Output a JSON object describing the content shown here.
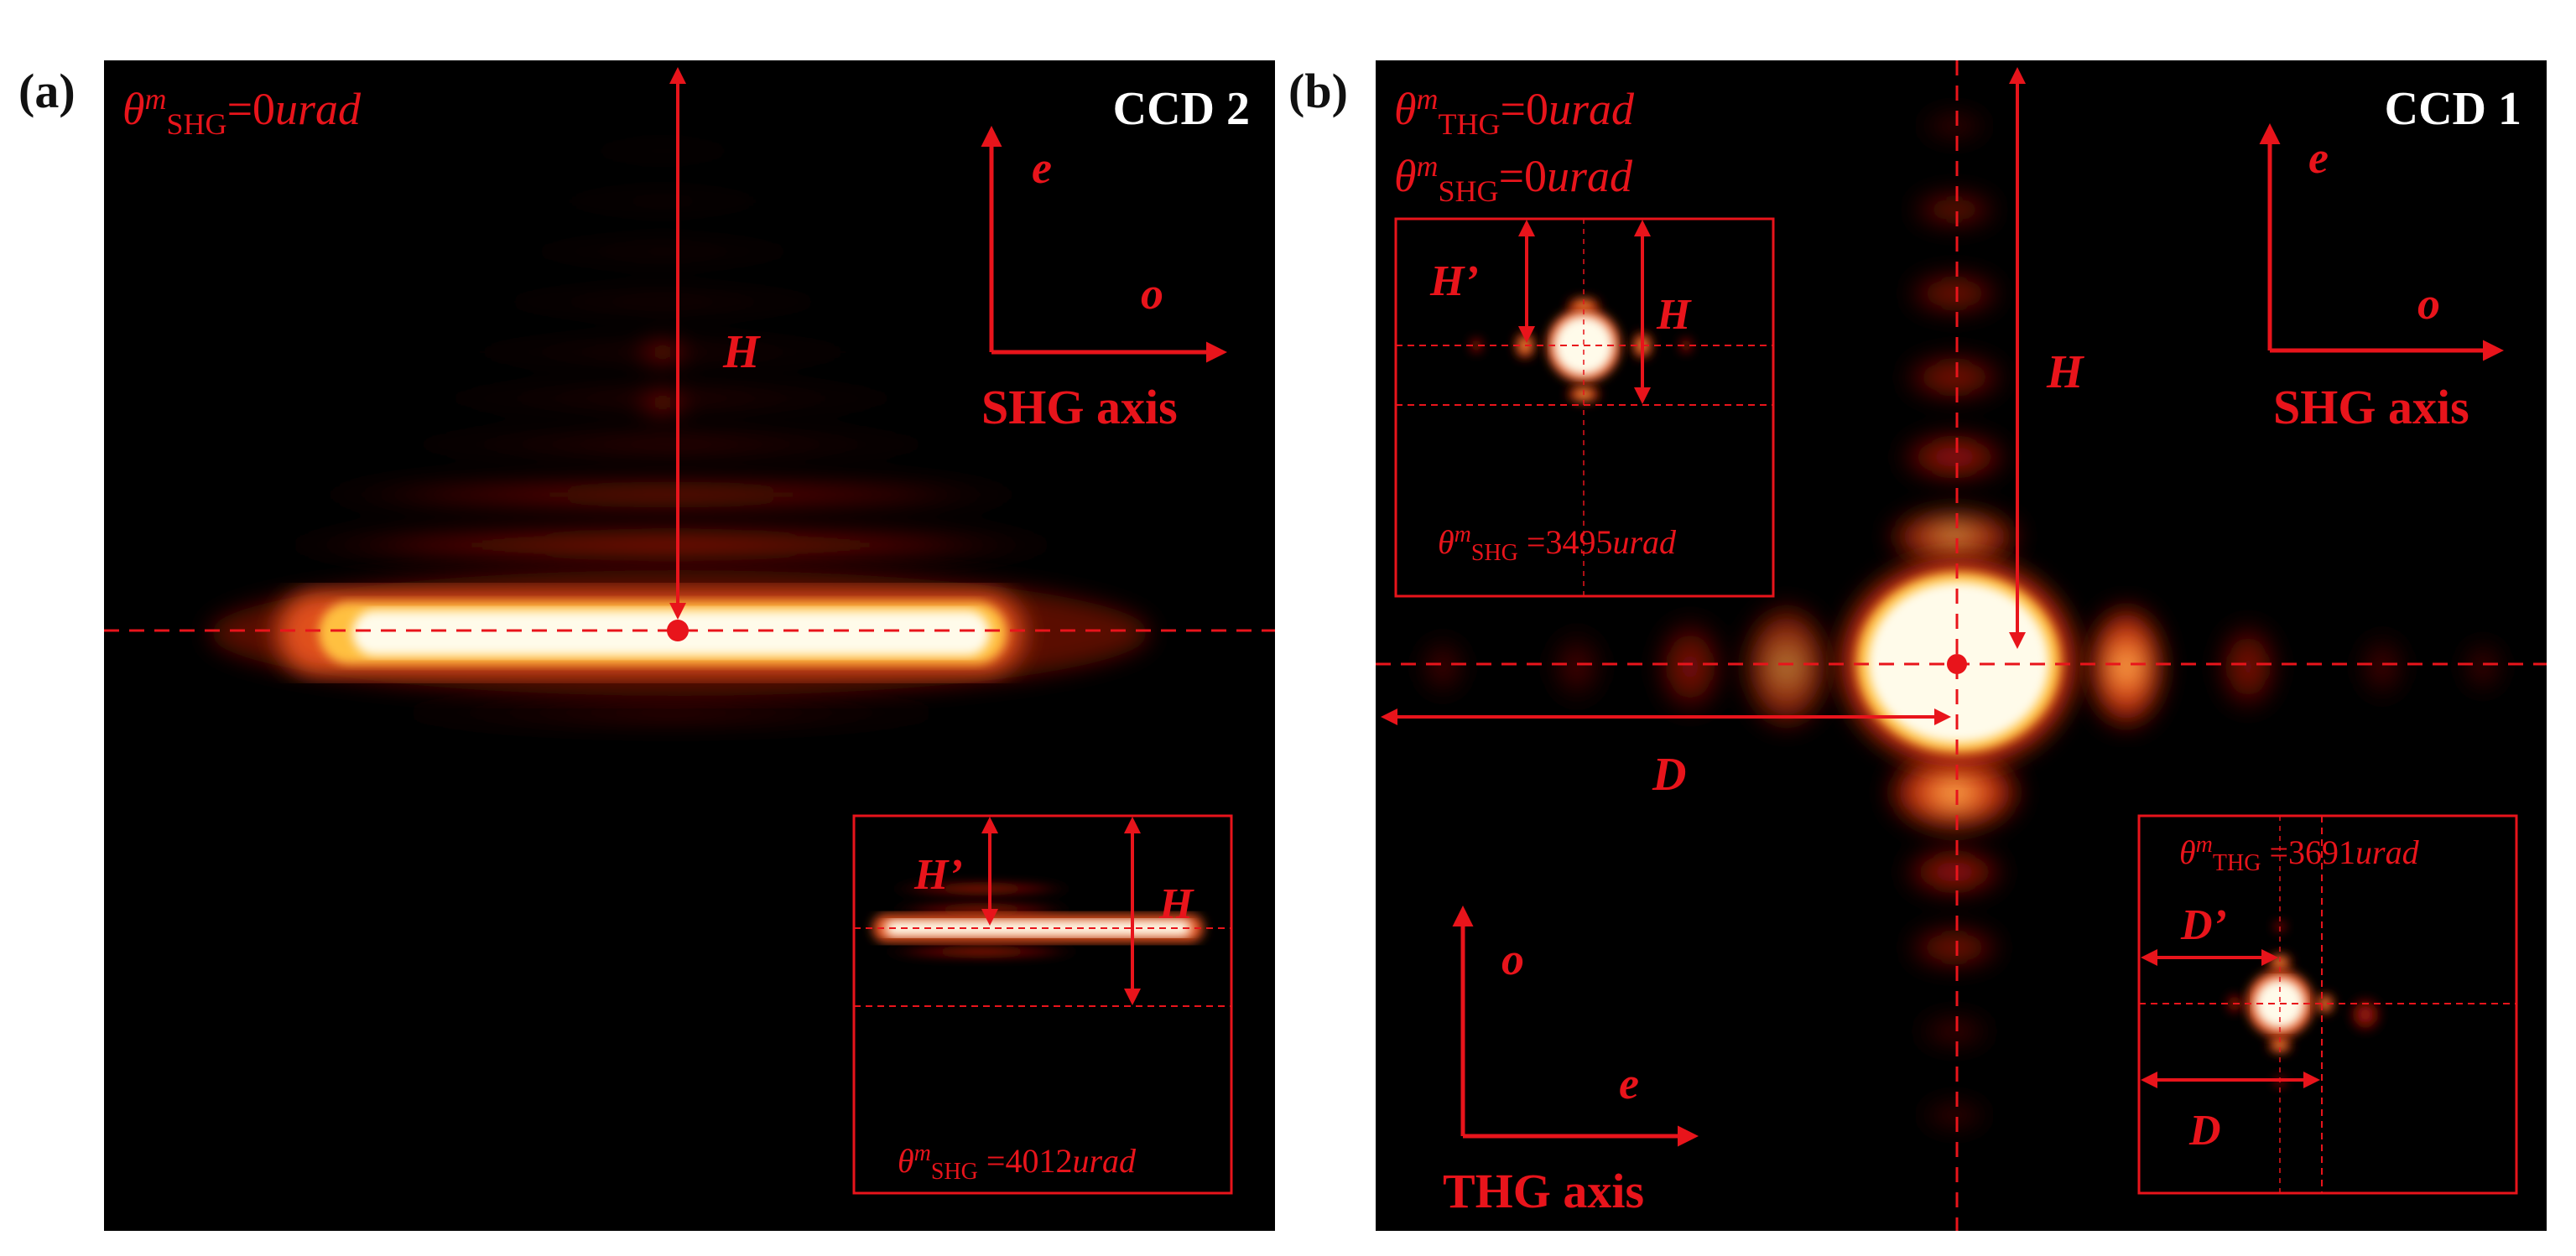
{
  "panels": [
    {
      "label": "(a)",
      "camera": "CCD 2",
      "angle_main": {
        "theta": "θ",
        "sup": "m",
        "sub": "SHG",
        "value": "=0",
        "unit": "urad"
      },
      "height_label": "H",
      "axes": {
        "vertical": "e",
        "horizontal": "o",
        "name": "SHG axis"
      },
      "inset": {
        "label_small": "H’",
        "label_large": "H",
        "angle": {
          "theta": "θ",
          "sup": "m",
          "sub": "SHG",
          "value": " =4012",
          "unit": "urad"
        }
      }
    },
    {
      "label": "(b)",
      "camera": "CCD 1",
      "angle_thg": {
        "theta": "θ",
        "sup": "m",
        "sub": "THG",
        "value": "=0",
        "unit": "urad"
      },
      "angle_shg": {
        "theta": "θ",
        "sup": "m",
        "sub": "SHG",
        "value": "=0",
        "unit": "urad"
      },
      "height_label": "H",
      "width_label": "D",
      "shg_axes": {
        "vertical": "e",
        "horizontal": "o",
        "name": "SHG axis"
      },
      "thg_axes": {
        "vertical": "o",
        "horizontal": "e",
        "name": "THG axis"
      },
      "inset_shg": {
        "label_small": "H’",
        "label_large": "H",
        "angle": {
          "theta": "θ",
          "sup": "m",
          "sub": "SHG",
          "value": " =3495",
          "unit": "urad"
        }
      },
      "inset_thg": {
        "label_small": "D’",
        "label_large": "D",
        "angle": {
          "theta": "θ",
          "sup": "m",
          "sub": "THG",
          "value": " =3691",
          "unit": "urad"
        }
      }
    }
  ],
  "colors": {
    "annotation": "#e8141b",
    "background": "#000000",
    "beam_core": "#fffbe6"
  }
}
